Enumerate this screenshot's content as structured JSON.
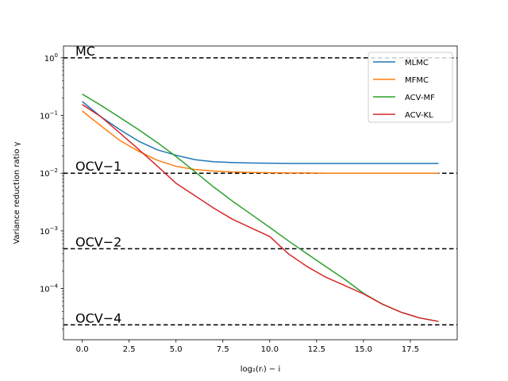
{
  "chart_data": {
    "type": "line",
    "xlabel": "log₂(rᵢ) − i",
    "ylabel": "Variance reduction ratio γ",
    "xlim": [
      -1,
      20
    ],
    "ylim": [
      1.3e-05,
      1.6
    ],
    "yscale": "log",
    "grid": false,
    "legend_placement": "top-right",
    "x_ticks": [
      0.0,
      2.5,
      5.0,
      7.5,
      10.0,
      12.5,
      15.0,
      17.5
    ],
    "x_tick_labels": [
      "0.0",
      "2.5",
      "5.0",
      "7.5",
      "10.0",
      "12.5",
      "15.0",
      "17.5"
    ],
    "y_ticks": [
      0.0001,
      0.001,
      0.01,
      0.1,
      1
    ],
    "y_tick_bases": [
      "10",
      "10",
      "10",
      "10",
      "10"
    ],
    "y_tick_exponents": [
      "−4",
      "−3",
      "−2",
      "−1",
      "0"
    ],
    "x": [
      0,
      1,
      2,
      3,
      4,
      5,
      6,
      7,
      8,
      9,
      10,
      11,
      12,
      13,
      14,
      15,
      16,
      17,
      18,
      19
    ],
    "series": [
      {
        "name": "MLMC",
        "color": "#1f77b4",
        "values": [
          0.175,
          0.095,
          0.057,
          0.036,
          0.0255,
          0.0205,
          0.0172,
          0.0158,
          0.0153,
          0.015,
          0.0149,
          0.0148,
          0.0148,
          0.0148,
          0.0148,
          0.0148,
          0.0148,
          0.0148,
          0.0148,
          0.0148
        ]
      },
      {
        "name": "MFMC",
        "color": "#ff7f0e",
        "values": [
          0.12,
          0.066,
          0.037,
          0.024,
          0.0168,
          0.0132,
          0.0116,
          0.0109,
          0.0105,
          0.0103,
          0.0102,
          0.0101,
          0.0101,
          0.01,
          0.01,
          0.01,
          0.01,
          0.01,
          0.01,
          0.01
        ]
      },
      {
        "name": "ACV-MF",
        "color": "#2ca02c",
        "values": [
          0.235,
          0.15,
          0.093,
          0.057,
          0.034,
          0.0195,
          0.0107,
          0.0058,
          0.0033,
          0.00195,
          0.00115,
          0.00067,
          0.0004,
          0.00024,
          0.000145,
          8.3e-05,
          5.4e-05,
          3.9e-05,
          3.1e-05,
          2.7e-05
        ]
      },
      {
        "name": "ACV-KL",
        "color": "#d62728",
        "values": [
          0.155,
          0.095,
          0.05,
          0.026,
          0.0133,
          0.0067,
          0.0041,
          0.0025,
          0.0016,
          0.00113,
          0.0008,
          0.0004,
          0.00024,
          0.000157,
          0.000113,
          8.1e-05,
          5.4e-05,
          3.9e-05,
          3.1e-05,
          2.7e-05
        ]
      }
    ],
    "reference_lines": [
      {
        "label": "MC",
        "value": 1
      },
      {
        "label": "OCV−1",
        "value": 0.01
      },
      {
        "label": "OCV−2",
        "value": 0.00049
      },
      {
        "label": "OCV−4",
        "value": 2.35e-05
      }
    ]
  }
}
